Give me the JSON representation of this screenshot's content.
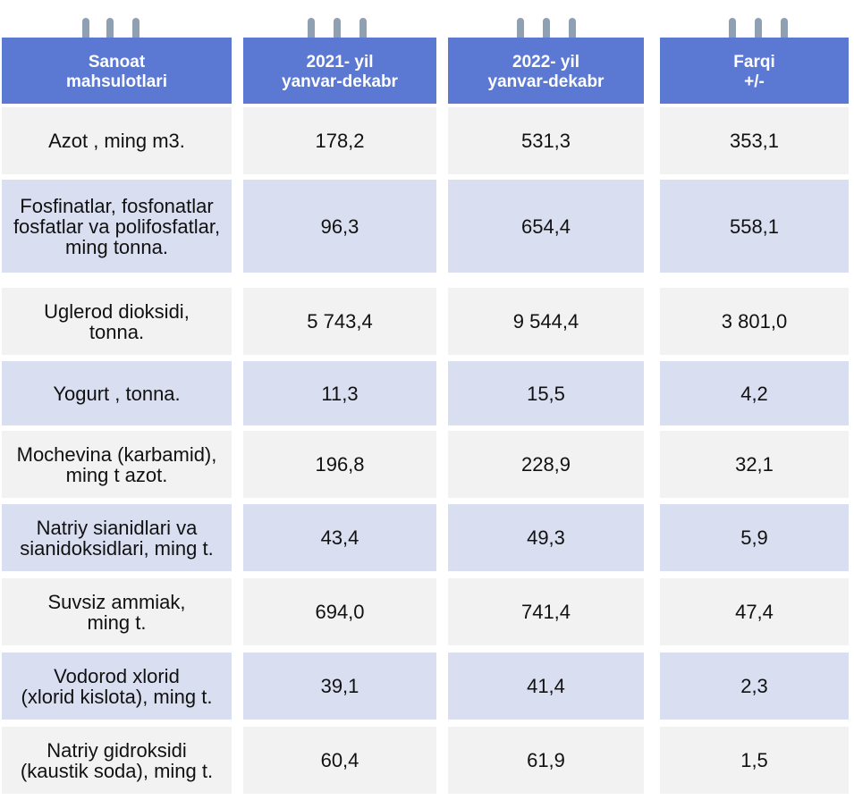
{
  "headers": {
    "product": "Sanoat\nmahsulotlari",
    "y2021": "2021- yil\nyanvar-dekabr",
    "y2022": "2022- yil\nyanvar-dekabr",
    "diff": "Farqi\n+/-"
  },
  "rows": [
    {
      "name": "Azot , ming m3.",
      "v2021": "178,2",
      "v2022": "531,3",
      "diff": "353,1"
    },
    {
      "name": "Fosfinatlar, fosfonatlar\nfosfatlar va polifosfatlar,\nming tonna.",
      "v2021": "96,3",
      "v2022": "654,4",
      "diff": "558,1"
    },
    {
      "name": "Uglerod dioksidi,\ntonna.",
      "v2021": "5 743,4",
      "v2022": "9 544,4",
      "diff": "3 801,0"
    },
    {
      "name": "Yogurt , tonna.",
      "v2021": "11,3",
      "v2022": "15,5",
      "diff": "4,2"
    },
    {
      "name": "Mochevina (karbamid),\nming t azot.",
      "v2021": "196,8",
      "v2022": "228,9",
      "diff": "32,1"
    },
    {
      "name": "Natriy sianidlari va\nsianidoksidlari, ming t.",
      "v2021": "43,4",
      "v2022": "49,3",
      "diff": "5,9"
    },
    {
      "name": "Suvsiz ammiak,\nming t.",
      "v2021": "694,0",
      "v2022": "741,4",
      "diff": "47,4"
    },
    {
      "name": "Vodorod xlorid\n(xlorid kislota), ming t.",
      "v2021": "39,1",
      "v2022": "41,4",
      "diff": "2,3"
    },
    {
      "name": "Natriy gidroksidi\n(kaustik soda), ming t.",
      "v2021": "60,4",
      "v2022": "61,9",
      "diff": "1,5"
    }
  ],
  "colors": {
    "header": "#5b79d3",
    "row_light": "#f2f2f2",
    "row_blue": "#d9dff1",
    "ring": "#8fa0b3"
  }
}
